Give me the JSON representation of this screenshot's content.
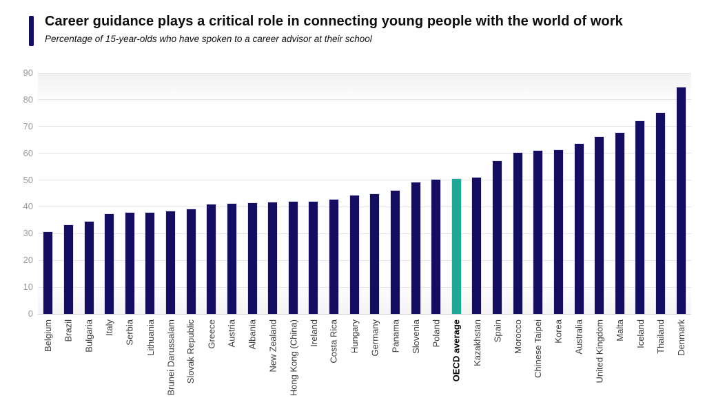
{
  "header": {
    "title": "Career guidance plays a critical role in connecting young people with the world of work",
    "subtitle": "Percentage of 15-year-olds who have spoken to a career advisor at their school"
  },
  "chart_data": {
    "type": "bar",
    "title": "Career guidance plays a critical role in connecting young people with the world of work",
    "subtitle": "Percentage of 15-year-olds who have spoken to a career advisor at their school",
    "categories": [
      "Belgium",
      "Brazil",
      "Bulgaria",
      "Italy",
      "Serbia",
      "Lithuania",
      "Brunei Darussalam",
      "Slovak Republic",
      "Greece",
      "Austria",
      "Albania",
      "New Zealand",
      "Hong Kong (China)",
      "Ireland",
      "Costa Rica",
      "Hungary",
      "Germany",
      "Panama",
      "Slovenia",
      "Poland",
      "OECD average",
      "Kazakhstan",
      "Spain",
      "Morocco",
      "Chinese Taipei",
      "Korea",
      "Australia",
      "United Kingdom",
      "Malta",
      "Iceland",
      "Thailand",
      "Denmark"
    ],
    "values": [
      30.7,
      33.2,
      34.5,
      37.2,
      37.8,
      37.9,
      38.2,
      39.1,
      40.9,
      41.2,
      41.4,
      41.6,
      41.8,
      42.0,
      42.7,
      44.2,
      44.8,
      46.1,
      49.1,
      50.1,
      50.3,
      50.9,
      57.1,
      60.1,
      61.0,
      61.2,
      63.6,
      66.1,
      67.7,
      72.0,
      75.1,
      84.5
    ],
    "highlight_category": "OECD average",
    "xlabel": "",
    "ylabel": "",
    "ylim": [
      0,
      90
    ],
    "yticks": [
      0,
      10,
      20,
      30,
      40,
      50,
      60,
      70,
      80,
      90
    ],
    "grid": true,
    "legend_position": "none",
    "bar_color": "#150e60",
    "highlight_color": "#20a896"
  },
  "colors": {
    "accent_bar": "#150e60",
    "grid_line": "#e4e4e4",
    "axis_tick_text": "#999999",
    "category_text": "#3d3d3d",
    "highlight_text": "#000000",
    "title_text": "#0d0d0d",
    "plot_gradient_edge": "#f2f2f2"
  }
}
